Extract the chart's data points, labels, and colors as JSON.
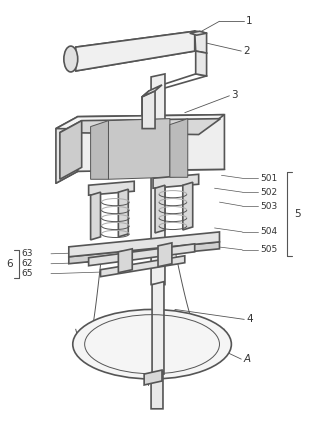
{
  "bg_color": "#ffffff",
  "line_color": "#555555",
  "lw": 1.2,
  "tlw": 0.7,
  "label_fontsize": 7.5,
  "fig_w": 3.2,
  "fig_h": 4.43,
  "dpi": 100
}
